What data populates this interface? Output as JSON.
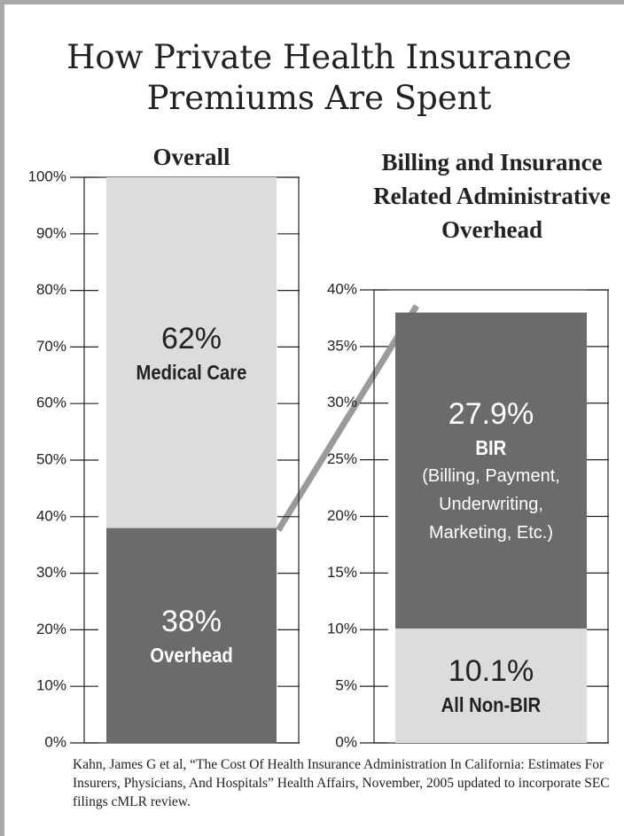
{
  "title": "How Private Health Insurance Premiums Are Spent",
  "source": "Kahn, James G et al, “The Cost Of Health Insurance Administration In California: Estimates For Insurers, Physicians, And Hospitals” Health Affairs, November, 2005 updated to incorporate SEC filings cMLR review.",
  "chart_data": [
    {
      "type": "stacked_bar",
      "title": "Overall",
      "categories": [
        null
      ],
      "ylim": [
        0,
        100
      ],
      "yticks": [
        {
          "value": 0,
          "label": "0%"
        },
        {
          "value": 10,
          "label": "10%"
        },
        {
          "value": 20,
          "label": "20%"
        },
        {
          "value": 30,
          "label": "30%"
        },
        {
          "value": 40,
          "label": "40%"
        },
        {
          "value": 50,
          "label": "50%"
        },
        {
          "value": 60,
          "label": "60%"
        },
        {
          "value": 70,
          "label": "70%"
        },
        {
          "value": 80,
          "label": "80%"
        },
        {
          "value": 90,
          "label": "90%"
        },
        {
          "value": 100,
          "label": "100%"
        }
      ],
      "series": [
        {
          "name": "Overhead",
          "color": "#6b6b6b",
          "values": [
            38
          ],
          "value_labels": [
            "38%"
          ]
        },
        {
          "name": "Medical Care",
          "color": "#dcdcdc",
          "values": [
            62
          ],
          "value_labels": [
            "62%"
          ]
        }
      ]
    },
    {
      "type": "stacked_bar",
      "title": "Billing and Insurance Related Administrative Overhead",
      "categories": [
        null
      ],
      "ylim": [
        0,
        40
      ],
      "yticks": [
        {
          "value": 0,
          "label": "0%"
        },
        {
          "value": 5,
          "label": "5%"
        },
        {
          "value": 10,
          "label": "10%"
        },
        {
          "value": 15,
          "label": "15%"
        },
        {
          "value": 20,
          "label": "20%"
        },
        {
          "value": 25,
          "label": "25%"
        },
        {
          "value": 30,
          "label": "30%"
        },
        {
          "value": 35,
          "label": "35%"
        },
        {
          "value": 40,
          "label": "40%"
        }
      ],
      "series": [
        {
          "name": "All Non-BIR",
          "color": "#dcdcdc",
          "values": [
            10.1
          ],
          "value_labels": [
            "10.1%"
          ]
        },
        {
          "name": "BIR",
          "note": "(Billing, Payment, Underwriting, Marketing, Etc.)",
          "color": "#6b6b6b",
          "values": [
            27.9
          ],
          "value_labels": [
            "27.9%"
          ]
        }
      ]
    }
  ]
}
